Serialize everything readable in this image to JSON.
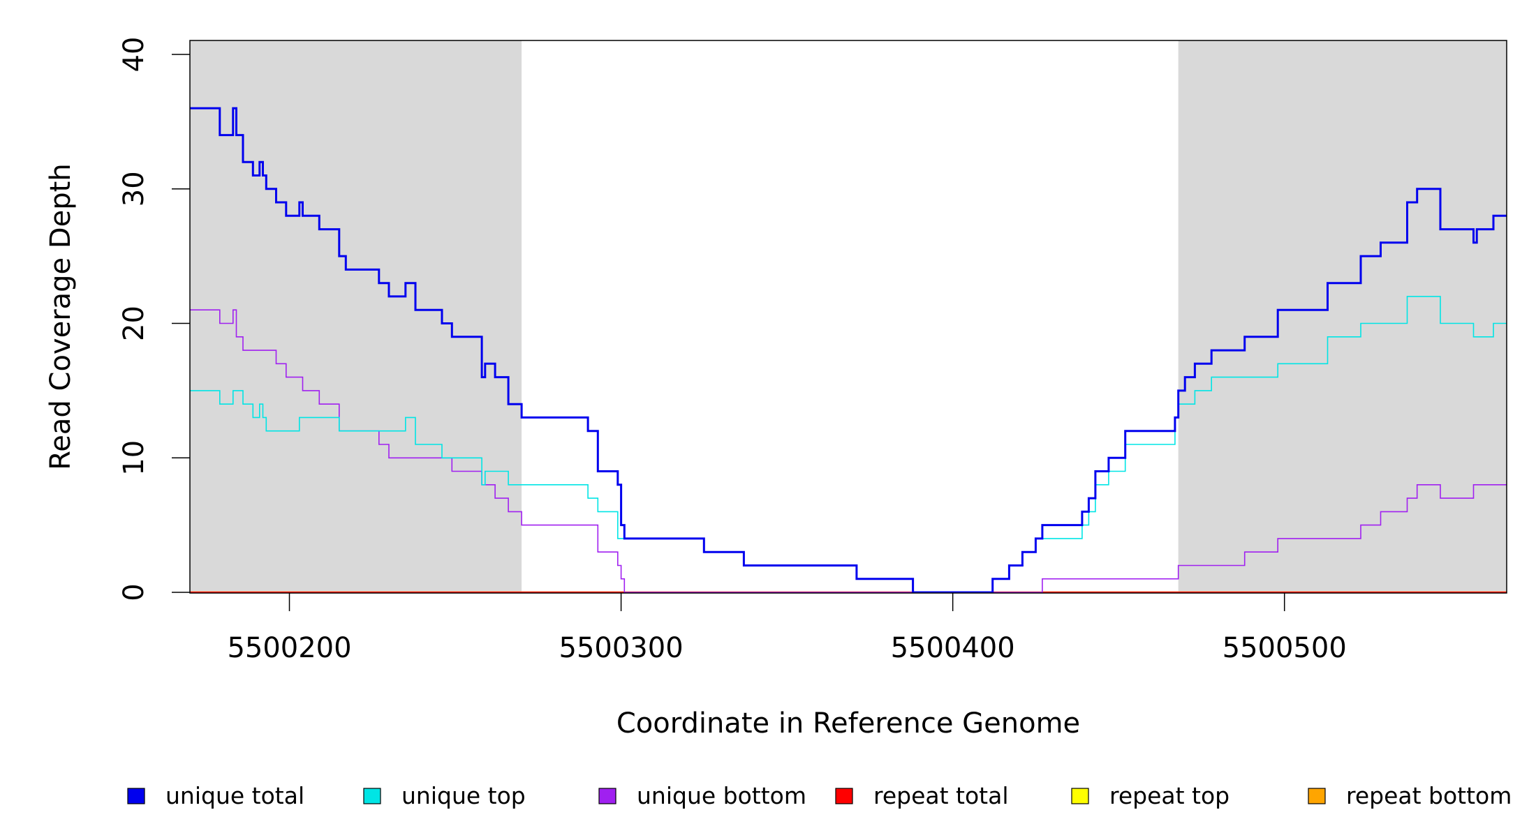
{
  "chart_data": {
    "type": "line",
    "xlabel": "Coordinate in Reference Genome",
    "ylabel": "Read Coverage Depth",
    "xlim": [
      5500170,
      5500567
    ],
    "ylim": [
      0,
      40
    ],
    "x_ticks": [
      5500200,
      5500300,
      5500400,
      5500500
    ],
    "x_tick_labels": [
      "5500200",
      "5500300",
      "5500400",
      "5500500"
    ],
    "y_ticks": [
      0,
      10,
      20,
      30,
      40
    ],
    "y_tick_labels": [
      "0",
      "10",
      "20",
      "30",
      "40"
    ],
    "grid": false,
    "legend_position": "bottom",
    "shaded_regions": [
      {
        "x0": 5500170,
        "x1": 5500270,
        "color": "#d9d9d9"
      },
      {
        "x0": 5500468,
        "x1": 5500567,
        "color": "#d9d9d9"
      }
    ],
    "series": [
      {
        "name": "unique total",
        "color": "#0000ee",
        "step": true,
        "points": [
          [
            5500170,
            36
          ],
          [
            5500179,
            34
          ],
          [
            5500183,
            36
          ],
          [
            5500184,
            34
          ],
          [
            5500186,
            32
          ],
          [
            5500189,
            31
          ],
          [
            5500191,
            32
          ],
          [
            5500192,
            31
          ],
          [
            5500193,
            30
          ],
          [
            5500196,
            29
          ],
          [
            5500199,
            28
          ],
          [
            5500203,
            29
          ],
          [
            5500204,
            28
          ],
          [
            5500209,
            27
          ],
          [
            5500215,
            25
          ],
          [
            5500217,
            24
          ],
          [
            5500227,
            23
          ],
          [
            5500230,
            22
          ],
          [
            5500235,
            23
          ],
          [
            5500238,
            21
          ],
          [
            5500246,
            20
          ],
          [
            5500249,
            19
          ],
          [
            5500258,
            16
          ],
          [
            5500259,
            17
          ],
          [
            5500262,
            16
          ],
          [
            5500266,
            14
          ],
          [
            5500270,
            13
          ],
          [
            5500290,
            12
          ],
          [
            5500293,
            9
          ],
          [
            5500299,
            8
          ],
          [
            5500300,
            5
          ],
          [
            5500301,
            4
          ],
          [
            5500325,
            3
          ],
          [
            5500337,
            2
          ],
          [
            5500371,
            1
          ],
          [
            5500388,
            0
          ],
          [
            5500412,
            1
          ],
          [
            5500417,
            2
          ],
          [
            5500421,
            3
          ],
          [
            5500425,
            4
          ],
          [
            5500427,
            5
          ],
          [
            5500439,
            6
          ],
          [
            5500441,
            7
          ],
          [
            5500443,
            9
          ],
          [
            5500447,
            10
          ],
          [
            5500452,
            12
          ],
          [
            5500467,
            13
          ],
          [
            5500468,
            15
          ],
          [
            5500470,
            16
          ],
          [
            5500473,
            17
          ],
          [
            5500478,
            18
          ],
          [
            5500488,
            19
          ],
          [
            5500498,
            21
          ],
          [
            5500513,
            23
          ],
          [
            5500523,
            25
          ],
          [
            5500529,
            26
          ],
          [
            5500537,
            29
          ],
          [
            5500540,
            30
          ],
          [
            5500547,
            27
          ],
          [
            5500557,
            26
          ],
          [
            5500558,
            27
          ],
          [
            5500563,
            28
          ],
          [
            5500567,
            28
          ]
        ]
      },
      {
        "name": "unique top",
        "color": "#00e5e5",
        "step": true,
        "points": [
          [
            5500170,
            15
          ],
          [
            5500179,
            14
          ],
          [
            5500183,
            15
          ],
          [
            5500186,
            14
          ],
          [
            5500189,
            13
          ],
          [
            5500191,
            14
          ],
          [
            5500192,
            13
          ],
          [
            5500193,
            12
          ],
          [
            5500203,
            13
          ],
          [
            5500215,
            12
          ],
          [
            5500235,
            13
          ],
          [
            5500238,
            11
          ],
          [
            5500246,
            10
          ],
          [
            5500258,
            8
          ],
          [
            5500259,
            9
          ],
          [
            5500266,
            8
          ],
          [
            5500290,
            7
          ],
          [
            5500293,
            6
          ],
          [
            5500299,
            4
          ],
          [
            5500325,
            3
          ],
          [
            5500337,
            2
          ],
          [
            5500371,
            1
          ],
          [
            5500388,
            0
          ],
          [
            5500412,
            1
          ],
          [
            5500417,
            2
          ],
          [
            5500421,
            3
          ],
          [
            5500425,
            4
          ],
          [
            5500439,
            5
          ],
          [
            5500441,
            6
          ],
          [
            5500443,
            8
          ],
          [
            5500447,
            9
          ],
          [
            5500452,
            11
          ],
          [
            5500467,
            13
          ],
          [
            5500468,
            14
          ],
          [
            5500473,
            15
          ],
          [
            5500478,
            16
          ],
          [
            5500498,
            17
          ],
          [
            5500513,
            19
          ],
          [
            5500523,
            20
          ],
          [
            5500537,
            22
          ],
          [
            5500547,
            20
          ],
          [
            5500557,
            19
          ],
          [
            5500563,
            20
          ],
          [
            5500567,
            20
          ]
        ]
      },
      {
        "name": "unique bottom",
        "color": "#a020f0",
        "step": true,
        "points": [
          [
            5500170,
            21
          ],
          [
            5500179,
            20
          ],
          [
            5500183,
            21
          ],
          [
            5500184,
            19
          ],
          [
            5500186,
            18
          ],
          [
            5500196,
            17
          ],
          [
            5500199,
            16
          ],
          [
            5500204,
            15
          ],
          [
            5500209,
            14
          ],
          [
            5500215,
            12
          ],
          [
            5500227,
            11
          ],
          [
            5500230,
            10
          ],
          [
            5500249,
            9
          ],
          [
            5500258,
            8
          ],
          [
            5500262,
            7
          ],
          [
            5500266,
            6
          ],
          [
            5500270,
            5
          ],
          [
            5500293,
            3
          ],
          [
            5500299,
            2
          ],
          [
            5500300,
            1
          ],
          [
            5500301,
            0
          ],
          [
            5500427,
            1
          ],
          [
            5500468,
            2
          ],
          [
            5500488,
            3
          ],
          [
            5500498,
            4
          ],
          [
            5500523,
            5
          ],
          [
            5500529,
            6
          ],
          [
            5500537,
            7
          ],
          [
            5500540,
            8
          ],
          [
            5500547,
            7
          ],
          [
            5500557,
            8
          ],
          [
            5500567,
            8
          ]
        ]
      },
      {
        "name": "repeat total",
        "color": "#ff0000",
        "step": true,
        "points": [
          [
            5500170,
            0
          ],
          [
            5500567,
            0
          ]
        ]
      },
      {
        "name": "repeat top",
        "color": "#ffff00",
        "step": true,
        "points": [
          [
            5500170,
            0
          ],
          [
            5500567,
            0
          ]
        ]
      },
      {
        "name": "repeat bottom",
        "color": "#ffa500",
        "step": true,
        "points": [
          [
            5500170,
            0
          ],
          [
            5500567,
            0
          ]
        ]
      }
    ]
  }
}
